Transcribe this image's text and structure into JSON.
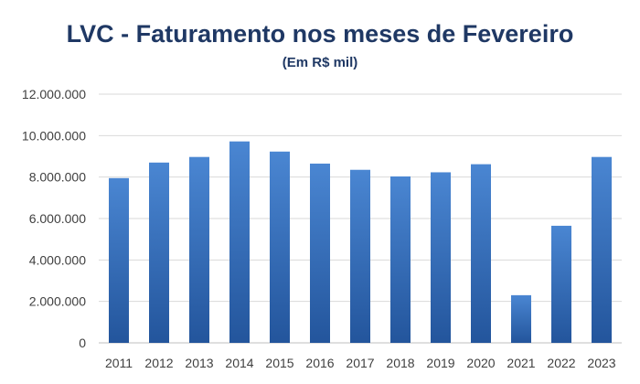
{
  "chart_data": {
    "type": "bar",
    "title": "LVC - Faturamento nos meses de Fevereiro",
    "subtitle": "(Em R$ mil)",
    "xlabel": "",
    "ylabel": "",
    "categories": [
      "2011",
      "2012",
      "2013",
      "2014",
      "2015",
      "2016",
      "2017",
      "2018",
      "2019",
      "2020",
      "2021",
      "2022",
      "2023"
    ],
    "values": [
      7950000,
      8700000,
      8970000,
      9720000,
      9230000,
      8650000,
      8350000,
      8030000,
      8230000,
      8620000,
      2300000,
      5650000,
      8970000
    ],
    "ylim": [
      0,
      12000000
    ],
    "yticks": [
      0,
      2000000,
      4000000,
      6000000,
      8000000,
      10000000,
      12000000
    ],
    "ytick_labels": [
      "0",
      "2.000.000",
      "4.000.000",
      "6.000.000",
      "8.000.000",
      "10.000.000",
      "12.000.000"
    ],
    "grid": true,
    "legend": "none",
    "colors": {
      "bar_top": "#4a86d2",
      "bar_bottom": "#23559c",
      "title": "#1f3864"
    }
  }
}
